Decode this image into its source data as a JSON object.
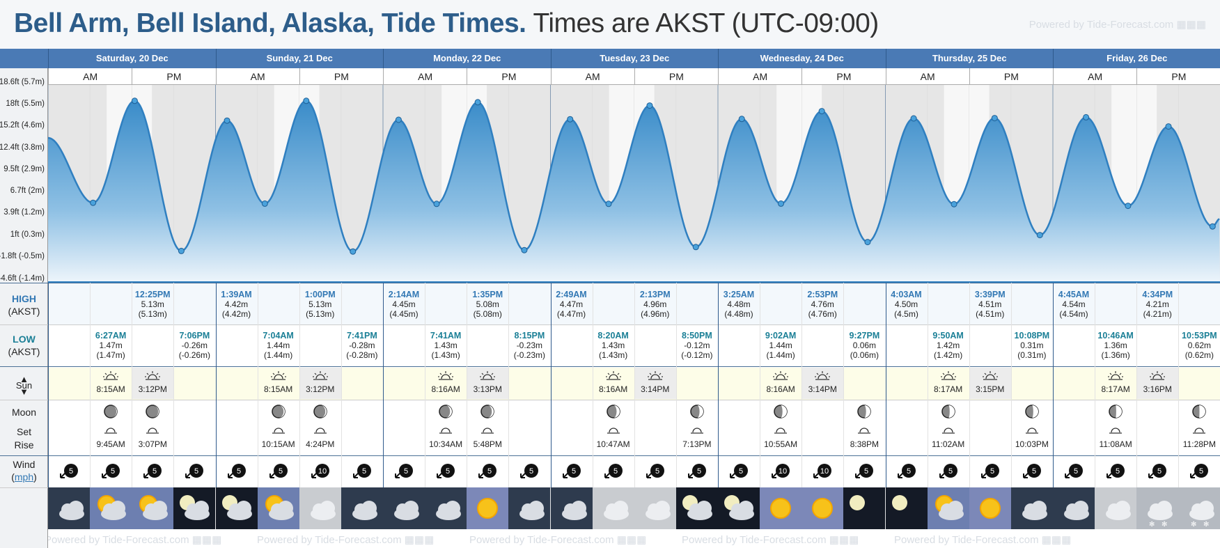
{
  "header": {
    "title": "Bell Arm, Bell Island, Alaska, Tide Times.",
    "subtitle": "Times are AKST (UTC-09:00)",
    "powered_by": "Powered by Tide-Forecast.com"
  },
  "days": [
    "Saturday, 20 Dec",
    "Sunday, 21 Dec",
    "Monday, 22 Dec",
    "Tuesday, 23 Dec",
    "Wednesday, 24 Dec",
    "Thursday, 25 Dec",
    "Friday, 26 Dec"
  ],
  "ampm": {
    "am": "AM",
    "pm": "PM"
  },
  "y_axis": [
    "18.6ft (5.7m)",
    "18ft (5.5m)",
    "15.2ft (4.6m)",
    "12.4ft (3.8m)",
    "9.5ft (2.9m)",
    "6.7ft (2m)",
    "3.9ft (1.2m)",
    "1ft (0.3m)",
    "-1.8ft (-0.5m)",
    "-4.6ft (-1.4m)"
  ],
  "labels": {
    "high": "HIGH",
    "high_tz": "(AKST)",
    "low": "LOW",
    "low_tz": "(AKST)",
    "sun": "Sun",
    "moon": "Moon",
    "set": "Set",
    "rise": "Rise",
    "wind": "Wind",
    "wind_unit": "mph"
  },
  "highs": [
    {
      "time": "12:25PM",
      "m": "5.13m",
      "ft": "(5.13m)",
      "slot": 2
    },
    {
      "time": "1:39AM",
      "m": "4.42m",
      "ft": "(4.42m)",
      "slot": 4
    },
    {
      "time": "1:00PM",
      "m": "5.13m",
      "ft": "(5.13m)",
      "slot": 6
    },
    {
      "time": "2:14AM",
      "m": "4.45m",
      "ft": "(4.45m)",
      "slot": 8
    },
    {
      "time": "1:35PM",
      "m": "5.08m",
      "ft": "(5.08m)",
      "slot": 10
    },
    {
      "time": "2:49AM",
      "m": "4.47m",
      "ft": "(4.47m)",
      "slot": 12
    },
    {
      "time": "2:13PM",
      "m": "4.96m",
      "ft": "(4.96m)",
      "slot": 14
    },
    {
      "time": "3:25AM",
      "m": "4.48m",
      "ft": "(4.48m)",
      "slot": 16
    },
    {
      "time": "2:53PM",
      "m": "4.76m",
      "ft": "(4.76m)",
      "slot": 18
    },
    {
      "time": "4:03AM",
      "m": "4.50m",
      "ft": "(4.5m)",
      "slot": 20
    },
    {
      "time": "3:39PM",
      "m": "4.51m",
      "ft": "(4.51m)",
      "slot": 22
    },
    {
      "time": "4:45AM",
      "m": "4.54m",
      "ft": "(4.54m)",
      "slot": 24
    },
    {
      "time": "4:34PM",
      "m": "4.21m",
      "ft": "(4.21m)",
      "slot": 26
    }
  ],
  "lows": [
    {
      "time": "6:27AM",
      "m": "1.47m",
      "ft": "(1.47m)",
      "slot": 1
    },
    {
      "time": "7:06PM",
      "m": "-0.26m",
      "ft": "(-0.26m)",
      "slot": 3
    },
    {
      "time": "7:04AM",
      "m": "1.44m",
      "ft": "(1.44m)",
      "slot": 5
    },
    {
      "time": "7:41PM",
      "m": "-0.28m",
      "ft": "(-0.28m)",
      "slot": 7
    },
    {
      "time": "7:41AM",
      "m": "1.43m",
      "ft": "(1.43m)",
      "slot": 9
    },
    {
      "time": "8:15PM",
      "m": "-0.23m",
      "ft": "(-0.23m)",
      "slot": 11
    },
    {
      "time": "8:20AM",
      "m": "1.43m",
      "ft": "(1.43m)",
      "slot": 13
    },
    {
      "time": "8:50PM",
      "m": "-0.12m",
      "ft": "(-0.12m)",
      "slot": 15
    },
    {
      "time": "9:02AM",
      "m": "1.44m",
      "ft": "(1.44m)",
      "slot": 17
    },
    {
      "time": "9:27PM",
      "m": "0.06m",
      "ft": "(0.06m)",
      "slot": 19
    },
    {
      "time": "9:50AM",
      "m": "1.42m",
      "ft": "(1.42m)",
      "slot": 21
    },
    {
      "time": "10:08PM",
      "m": "0.31m",
      "ft": "(0.31m)",
      "slot": 23
    },
    {
      "time": "10:46AM",
      "m": "1.36m",
      "ft": "(1.36m)",
      "slot": 25
    },
    {
      "time": "10:53PM",
      "m": "0.62m",
      "ft": "(0.62m)",
      "slot": 27
    }
  ],
  "sunrise": [
    {
      "time": "8:15AM",
      "slot": 1
    },
    {
      "time": "8:15AM",
      "slot": 5
    },
    {
      "time": "8:16AM",
      "slot": 9
    },
    {
      "time": "8:16AM",
      "slot": 13
    },
    {
      "time": "8:16AM",
      "slot": 17
    },
    {
      "time": "8:17AM",
      "slot": 21
    },
    {
      "time": "8:17AM",
      "slot": 25
    }
  ],
  "sunset": [
    {
      "time": "3:12PM",
      "slot": 2
    },
    {
      "time": "3:12PM",
      "slot": 6
    },
    {
      "time": "3:13PM",
      "slot": 10
    },
    {
      "time": "3:14PM",
      "slot": 14
    },
    {
      "time": "3:14PM",
      "slot": 18
    },
    {
      "time": "3:15PM",
      "slot": 22
    },
    {
      "time": "3:16PM",
      "slot": 26
    }
  ],
  "moonset": [
    {
      "time": "9:45AM",
      "slot": 1,
      "phase": 0.05
    },
    {
      "time": "3:07PM",
      "slot": 2,
      "phase": 0.05
    },
    {
      "time": "10:15AM",
      "slot": 5,
      "phase": 0.1
    },
    {
      "time": "4:24PM",
      "slot": 6,
      "phase": 0.1
    },
    {
      "time": "10:34AM",
      "slot": 9,
      "phase": 0.15
    },
    {
      "time": "5:48PM",
      "slot": 10,
      "phase": 0.15
    },
    {
      "time": "10:47AM",
      "slot": 13,
      "phase": 0.25
    },
    {
      "time": "7:13PM",
      "slot": 15,
      "phase": 0.3
    },
    {
      "time": "10:55AM",
      "slot": 17,
      "phase": 0.35
    },
    {
      "time": "8:38PM",
      "slot": 19,
      "phase": 0.35
    },
    {
      "time": "11:02AM",
      "slot": 21,
      "phase": 0.4
    },
    {
      "time": "10:03PM",
      "slot": 23,
      "phase": 0.4
    },
    {
      "time": "11:08AM",
      "slot": 25,
      "phase": 0.45
    },
    {
      "time": "11:28PM",
      "slot": 27,
      "phase": 0.5
    }
  ],
  "wind": [
    "5",
    "5",
    "5",
    "5",
    "5",
    "5",
    "10",
    "5",
    "5",
    "5",
    "5",
    "5",
    "5",
    "5",
    "5",
    "5",
    "5",
    "10",
    "10",
    "5",
    "5",
    "5",
    "5",
    "5",
    "5",
    "5",
    "5",
    "5"
  ],
  "weather": [
    "cloud",
    "sun-cloud",
    "sun-cloud",
    "moon-cloud",
    "moon-cloud",
    "sun-cloud",
    "overcast",
    "cloud",
    "cloud",
    "cloud",
    "sun",
    "cloud",
    "cloud",
    "overcast",
    "overcast",
    "moon-cloud",
    "moon-cloud",
    "sun",
    "sun",
    "moon",
    "moon",
    "sun-cloud",
    "sun",
    "cloud",
    "cloud",
    "overcast",
    "snow-cloud",
    "snow-cloud"
  ]
}
